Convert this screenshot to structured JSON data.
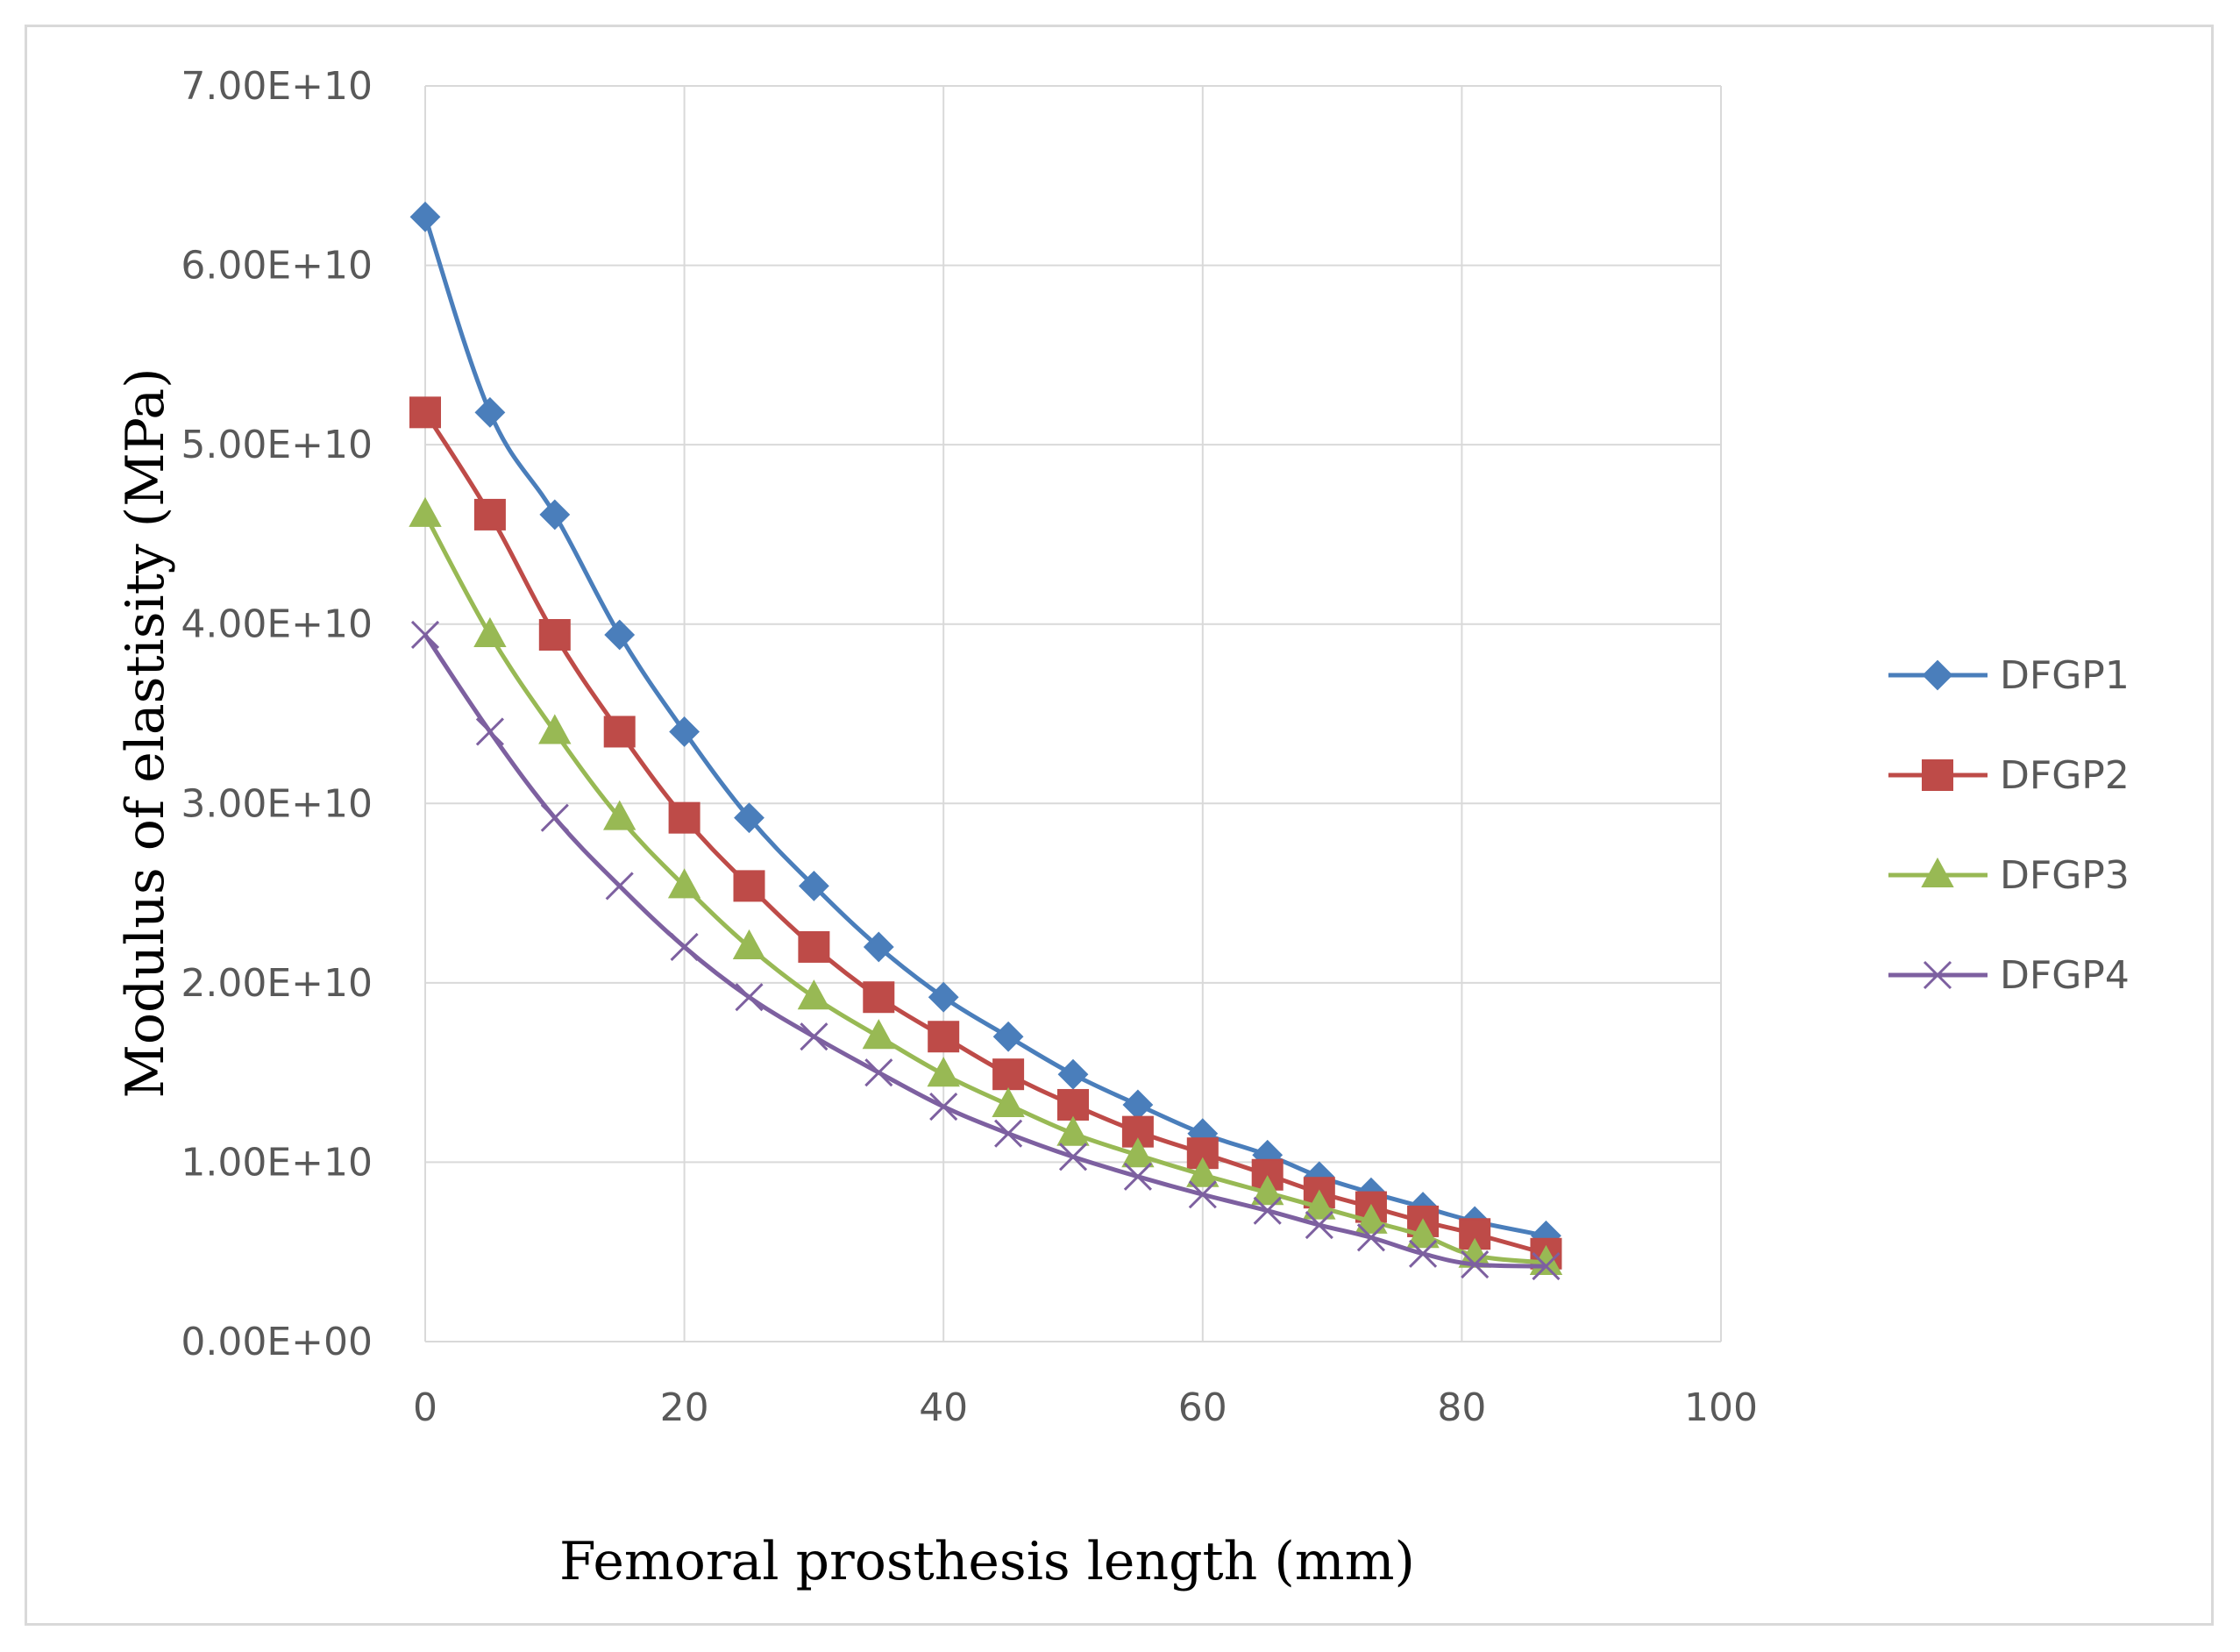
{
  "chart_data": {
    "type": "line",
    "title": "",
    "xlabel": "Femoral prosthesis length (mm)",
    "ylabel": "Modulus of elastisity (MPa)",
    "xlim": [
      0,
      100
    ],
    "ylim": [
      0,
      70000000000
    ],
    "x_ticks": [
      0,
      20,
      40,
      60,
      80,
      100
    ],
    "x_tick_labels": [
      "0",
      "20",
      "40",
      "60",
      "80",
      "100"
    ],
    "y_ticks": [
      0,
      10000000000,
      20000000000,
      30000000000,
      40000000000,
      50000000000,
      60000000000,
      70000000000
    ],
    "y_tick_labels": [
      "0.00E+00",
      "1.00E+10",
      "2.00E+10",
      "3.00E+10",
      "4.00E+10",
      "5.00E+10",
      "6.00E+10",
      "7.00E+10"
    ],
    "grid": true,
    "legend_position": "right",
    "x": [
      0,
      5,
      10,
      15,
      20,
      25,
      30,
      35,
      40,
      45,
      50,
      55,
      60,
      65,
      69,
      73,
      77,
      81,
      86.5
    ],
    "series": [
      {
        "name": "DFGP1",
        "color": "#4a7ebb",
        "marker": "diamond",
        "values": [
          62700000000,
          51800000000,
          46100000000,
          39400000000,
          34000000000,
          29200000000,
          25400000000,
          22000000000,
          19200000000,
          17000000000,
          14900000000,
          13200000000,
          11600000000,
          10400000000,
          9200000000,
          8300000000,
          7500000000,
          6700000000,
          5900000000
        ]
      },
      {
        "name": "DFGP2",
        "color": "#be4b48",
        "marker": "square",
        "values": [
          51800000000,
          46100000000,
          39400000000,
          34000000000,
          29200000000,
          25400000000,
          22000000000,
          19200000000,
          17000000000,
          14900000000,
          13200000000,
          11700000000,
          10500000000,
          9300000000,
          8300000000,
          7500000000,
          6700000000,
          6000000000,
          4900000000
        ]
      },
      {
        "name": "DFGP3",
        "color": "#98b954",
        "marker": "triangle",
        "values": [
          46100000000,
          39400000000,
          34000000000,
          29200000000,
          25400000000,
          22000000000,
          19200000000,
          17000000000,
          14900000000,
          13200000000,
          11600000000,
          10400000000,
          9300000000,
          8300000000,
          7500000000,
          6700000000,
          5900000000,
          4800000000,
          4400000000
        ]
      },
      {
        "name": "DFGP4",
        "color": "#7d60a0",
        "marker": "x",
        "values": [
          39400000000,
          34000000000,
          29200000000,
          25400000000,
          22000000000,
          19200000000,
          17000000000,
          15000000000,
          13100000000,
          11600000000,
          10300000000,
          9200000000,
          8200000000,
          7300000000,
          6500000000,
          5800000000,
          4900000000,
          4300000000,
          4200000000
        ]
      }
    ]
  }
}
